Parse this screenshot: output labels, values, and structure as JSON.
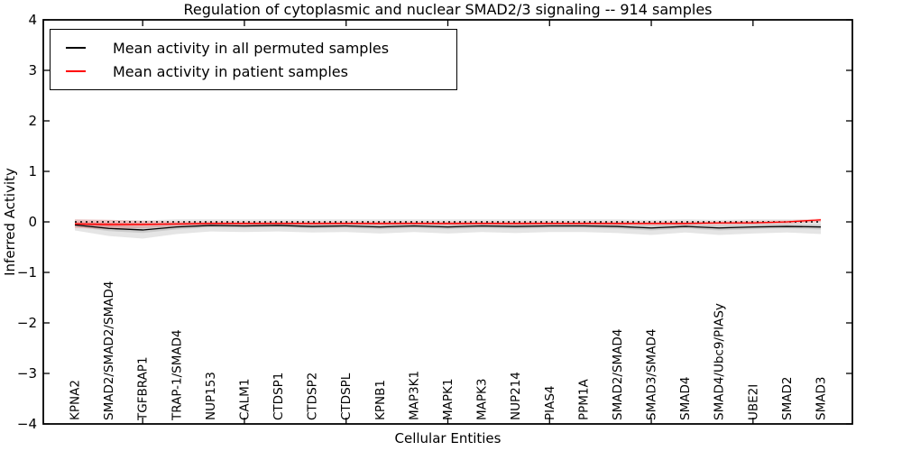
{
  "figure": {
    "title": "Regulation of cytoplasmic and nuclear SMAD2/3 signaling -- 914 samples",
    "xlabel": "Cellular Entities",
    "ylabel": "Inferred Activity"
  },
  "legend": {
    "position": "upper left",
    "items": [
      {
        "label": "Mean activity in all permuted samples",
        "color": "#000000"
      },
      {
        "label": "Mean activity in patient samples",
        "color": "#ff0000"
      }
    ]
  },
  "chart_data": {
    "type": "line",
    "title": "Regulation of cytoplasmic and nuclear SMAD2/3 signaling -- 914 samples",
    "xlabel": "Cellular Entities",
    "ylabel": "Inferred Activity",
    "ylim": [
      -4,
      4
    ],
    "yticks": [
      4,
      3,
      2,
      1,
      0,
      -1,
      -2,
      -3,
      -4
    ],
    "ytick_labels": [
      "4",
      "3",
      "2",
      "1",
      "0",
      "−1",
      "−2",
      "−3",
      "−4"
    ],
    "xtick_indices": [
      2,
      5,
      8,
      11,
      14,
      17,
      20
    ],
    "grid": false,
    "legend_position": "upper left",
    "zero_line": {
      "y": 0,
      "style": "dotted",
      "color": "#000000"
    },
    "categories": [
      "KPNA2",
      "SMAD2/SMAD2/SMAD4",
      "TGFBRAP1",
      "TRAP-1/SMAD4",
      "NUP153",
      "CALM1",
      "CTDSP1",
      "CTDSP2",
      "CTDSPL",
      "KPNB1",
      "MAP3K1",
      "MAPK1",
      "MAPK3",
      "NUP214",
      "PIAS4",
      "PPM1A",
      "SMAD2/SMAD4",
      "SMAD3/SMAD4",
      "SMAD4",
      "SMAD4/Ubc9/PIASy",
      "UBE2I",
      "SMAD2",
      "SMAD3"
    ],
    "series": [
      {
        "name": "Mean activity in all permuted samples",
        "color": "#000000",
        "band_color": "rgba(0,0,0,0.10)",
        "values": [
          -0.06,
          -0.13,
          -0.16,
          -0.1,
          -0.07,
          -0.08,
          -0.07,
          -0.09,
          -0.08,
          -0.1,
          -0.08,
          -0.1,
          -0.08,
          -0.09,
          -0.08,
          -0.08,
          -0.09,
          -0.12,
          -0.09,
          -0.12,
          -0.1,
          -0.09,
          -0.1
        ],
        "band_upper": [
          0.05,
          0.04,
          0.03,
          0.05,
          0.05,
          0.05,
          0.05,
          0.05,
          0.05,
          0.05,
          0.05,
          0.05,
          0.05,
          0.05,
          0.05,
          0.05,
          0.05,
          0.04,
          0.05,
          0.04,
          0.05,
          0.05,
          0.04
        ],
        "band_lower": [
          -0.17,
          -0.28,
          -0.33,
          -0.24,
          -0.19,
          -0.2,
          -0.19,
          -0.21,
          -0.2,
          -0.23,
          -0.2,
          -0.23,
          -0.2,
          -0.22,
          -0.2,
          -0.2,
          -0.22,
          -0.26,
          -0.21,
          -0.26,
          -0.23,
          -0.21,
          -0.24
        ]
      },
      {
        "name": "Mean activity in patient samples",
        "color": "#ff0000",
        "band_color": "rgba(255,0,0,0.16)",
        "values": [
          -0.04,
          -0.05,
          -0.05,
          -0.04,
          -0.03,
          -0.03,
          -0.03,
          -0.03,
          -0.03,
          -0.03,
          -0.03,
          -0.03,
          -0.03,
          -0.03,
          -0.03,
          -0.03,
          -0.03,
          -0.03,
          -0.03,
          -0.02,
          -0.02,
          0.0,
          0.04
        ],
        "band_upper": [
          0.05,
          0.04,
          0.02,
          0.01,
          0.01,
          0.01,
          0.01,
          0.01,
          0.01,
          0.01,
          0.01,
          0.01,
          0.01,
          0.01,
          0.01,
          0.01,
          0.01,
          0.01,
          0.01,
          0.01,
          0.02,
          0.03,
          0.07
        ],
        "band_lower": [
          -0.12,
          -0.14,
          -0.12,
          -0.09,
          -0.07,
          -0.07,
          -0.06,
          -0.07,
          -0.06,
          -0.07,
          -0.06,
          -0.07,
          -0.06,
          -0.07,
          -0.06,
          -0.06,
          -0.07,
          -0.07,
          -0.07,
          -0.06,
          -0.05,
          -0.04,
          0.0
        ]
      }
    ]
  }
}
